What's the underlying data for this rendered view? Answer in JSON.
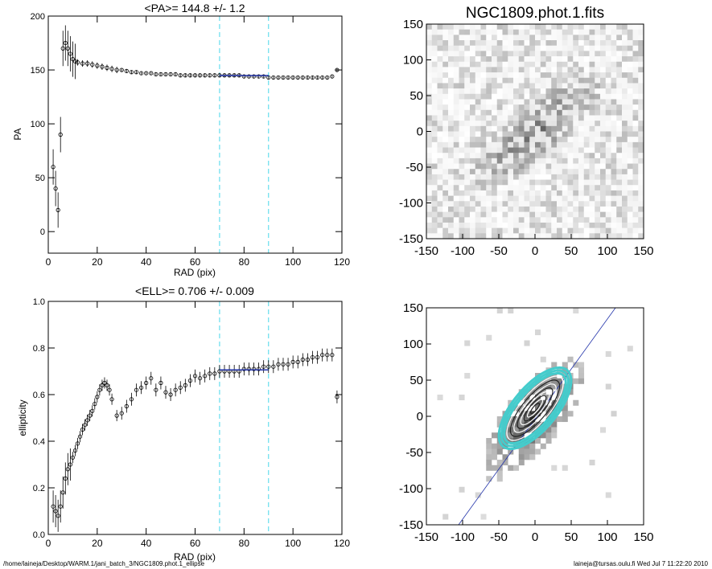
{
  "charts": {
    "pa": {
      "title": "<PA>= 144.8 +/-   1.2",
      "xlabel": "RAD (pix)",
      "ylabel": "PA",
      "xlim": [
        0,
        120
      ],
      "ylim": [
        -20,
        200
      ],
      "xticks": [
        "0",
        "20",
        "40",
        "60",
        "80",
        "100",
        "120"
      ],
      "yticks": [
        "0",
        "50",
        "100",
        "150",
        "200"
      ]
    },
    "ell": {
      "title": "<ELL>= 0.706 +/-  0.009",
      "xlabel": "RAD (pix)",
      "ylabel": "ellipticity",
      "xlim": [
        0,
        120
      ],
      "ylim": [
        0,
        1
      ],
      "xticks": [
        "0",
        "20",
        "40",
        "60",
        "80",
        "100",
        "120"
      ],
      "yticks": [
        "0.0",
        "0.2",
        "0.4",
        "0.6",
        "0.8",
        "1.0"
      ]
    },
    "image": {
      "title": "NGC1809.phot.1.fits",
      "ticks": [
        "-150",
        "-100",
        "-50",
        "0",
        "50",
        "100",
        "150"
      ],
      "yticks": [
        "150",
        "100",
        "50",
        "0",
        "-50",
        "-100",
        "-150"
      ]
    },
    "contour": {
      "ticks": [
        "-150",
        "-100",
        "-50",
        "0",
        "50",
        "100",
        "150"
      ],
      "yticks": [
        "150",
        "100",
        "50",
        "0",
        "-50",
        "-100",
        "-150"
      ]
    }
  },
  "footer": {
    "path": "/home/laineja/Desktop/WARM.1/jani_batch_3/NGC1809.phot.1_ellipse",
    "user_time": "laineja@tursas.oulu.fi  Wed Jul  7 11:22:20 2010"
  },
  "colors": {
    "fit_line": "#2233aa",
    "vline": "#66ddee",
    "contour": "#44cccc"
  },
  "chart_data": [
    {
      "type": "scatter",
      "title": "<PA>= 144.8 +/-   1.2",
      "xlabel": "RAD (pix)",
      "ylabel": "PA",
      "xlim": [
        0,
        120
      ],
      "ylim": [
        -20,
        200
      ],
      "vlines": [
        70,
        90
      ],
      "fit_range": [
        70,
        90
      ],
      "fit_value": 144.8,
      "x": [
        2,
        3,
        4,
        5,
        6,
        7,
        8,
        9,
        10,
        11,
        12,
        14,
        16,
        18,
        20,
        22,
        24,
        26,
        28,
        30,
        32,
        34,
        36,
        38,
        40,
        42,
        44,
        46,
        48,
        50,
        52,
        54,
        56,
        58,
        60,
        62,
        64,
        66,
        68,
        70,
        72,
        74,
        76,
        78,
        80,
        82,
        84,
        86,
        88,
        90,
        92,
        94,
        96,
        98,
        100,
        102,
        104,
        106,
        108,
        110,
        112,
        114,
        116,
        118
      ],
      "y": [
        60,
        40,
        20,
        90,
        170,
        175,
        170,
        165,
        160,
        158,
        157,
        156,
        156,
        155,
        154,
        153,
        152,
        151,
        150,
        150,
        149,
        148,
        148,
        147,
        147,
        147,
        146,
        146,
        146,
        146,
        146,
        145,
        145,
        145,
        145,
        145,
        145,
        145,
        145,
        145,
        145,
        145,
        145,
        145,
        144,
        144,
        144,
        144,
        144,
        143,
        143,
        143,
        143,
        143,
        143,
        143,
        143,
        143,
        143,
        143,
        143,
        143,
        144,
        150
      ]
    },
    {
      "type": "scatter",
      "title": "<ELL>= 0.706 +/-  0.009",
      "xlabel": "RAD (pix)",
      "ylabel": "ellipticity",
      "xlim": [
        0,
        120
      ],
      "ylim": [
        0,
        1
      ],
      "vlines": [
        70,
        90
      ],
      "fit_range": [
        70,
        90
      ],
      "fit_value": 0.706,
      "x": [
        2,
        3,
        4,
        5,
        6,
        7,
        8,
        9,
        10,
        11,
        12,
        13,
        14,
        15,
        16,
        17,
        18,
        19,
        20,
        21,
        22,
        23,
        24,
        25,
        26,
        28,
        30,
        32,
        34,
        36,
        38,
        40,
        42,
        44,
        46,
        48,
        50,
        52,
        54,
        56,
        58,
        60,
        62,
        64,
        66,
        68,
        70,
        72,
        74,
        76,
        78,
        80,
        82,
        84,
        86,
        88,
        90,
        92,
        94,
        96,
        98,
        100,
        102,
        104,
        106,
        108,
        110,
        112,
        114,
        116,
        118
      ],
      "y": [
        0.12,
        0.1,
        0.08,
        0.12,
        0.18,
        0.24,
        0.28,
        0.3,
        0.33,
        0.36,
        0.39,
        0.42,
        0.45,
        0.47,
        0.49,
        0.51,
        0.53,
        0.56,
        0.59,
        0.62,
        0.64,
        0.65,
        0.64,
        0.62,
        0.58,
        0.51,
        0.52,
        0.55,
        0.58,
        0.62,
        0.63,
        0.65,
        0.67,
        0.62,
        0.65,
        0.61,
        0.6,
        0.62,
        0.63,
        0.64,
        0.66,
        0.68,
        0.67,
        0.68,
        0.69,
        0.69,
        0.7,
        0.7,
        0.7,
        0.7,
        0.7,
        0.71,
        0.71,
        0.71,
        0.71,
        0.72,
        0.72,
        0.72,
        0.73,
        0.73,
        0.73,
        0.74,
        0.74,
        0.75,
        0.75,
        0.76,
        0.76,
        0.77,
        0.77,
        0.77,
        0.59
      ]
    },
    {
      "type": "heatmap",
      "title": "NGC1809.phot.1.fits",
      "xlim": [
        -150,
        150
      ],
      "ylim": [
        -150,
        150
      ]
    },
    {
      "type": "heatmap",
      "xlim": [
        -150,
        150
      ],
      "ylim": [
        -150,
        150
      ]
    }
  ]
}
